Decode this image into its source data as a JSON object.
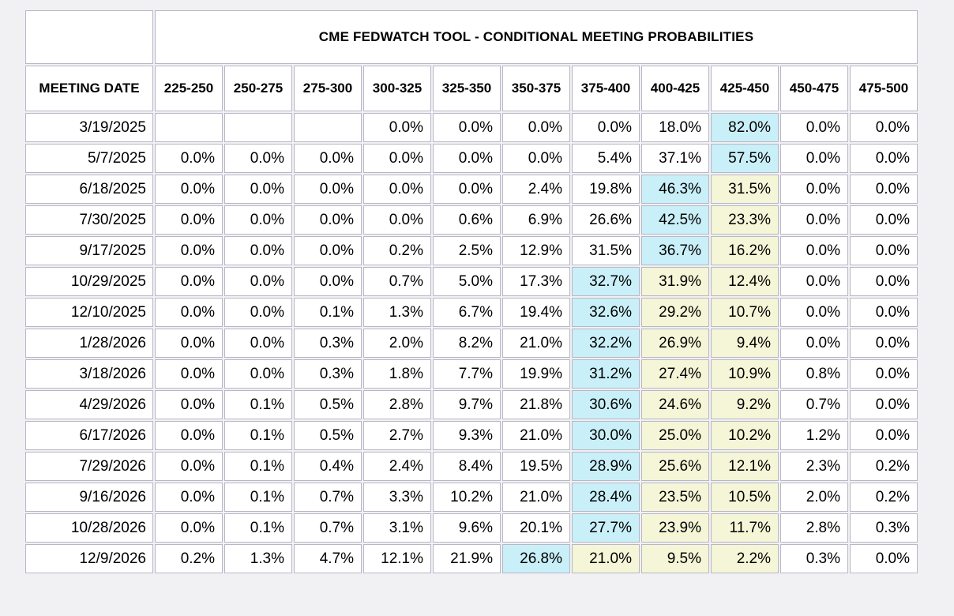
{
  "table": {
    "title": "CME FEDWATCH TOOL - CONDITIONAL MEETING PROBABILITIES",
    "meeting_date_header": "MEETING DATE",
    "rate_bins": [
      "225-250",
      "250-275",
      "275-300",
      "300-325",
      "325-350",
      "350-375",
      "375-400",
      "400-425",
      "425-450",
      "450-475",
      "475-500"
    ],
    "highlight_colors": {
      "blue": "#c9eff8",
      "yellow": "#f5f5d7"
    },
    "rows": [
      {
        "date": "3/19/2025",
        "values": [
          "",
          "",
          "",
          "0.0%",
          "0.0%",
          "0.0%",
          "0.0%",
          "18.0%",
          "82.0%",
          "0.0%",
          "0.0%"
        ],
        "highlight": [
          null,
          null,
          null,
          null,
          null,
          null,
          null,
          null,
          "blue",
          null,
          null
        ]
      },
      {
        "date": "5/7/2025",
        "values": [
          "0.0%",
          "0.0%",
          "0.0%",
          "0.0%",
          "0.0%",
          "0.0%",
          "5.4%",
          "37.1%",
          "57.5%",
          "0.0%",
          "0.0%"
        ],
        "highlight": [
          null,
          null,
          null,
          null,
          null,
          null,
          null,
          null,
          "blue",
          null,
          null
        ]
      },
      {
        "date": "6/18/2025",
        "values": [
          "0.0%",
          "0.0%",
          "0.0%",
          "0.0%",
          "0.0%",
          "2.4%",
          "19.8%",
          "46.3%",
          "31.5%",
          "0.0%",
          "0.0%"
        ],
        "highlight": [
          null,
          null,
          null,
          null,
          null,
          null,
          null,
          "blue",
          "yellow",
          null,
          null
        ]
      },
      {
        "date": "7/30/2025",
        "values": [
          "0.0%",
          "0.0%",
          "0.0%",
          "0.0%",
          "0.6%",
          "6.9%",
          "26.6%",
          "42.5%",
          "23.3%",
          "0.0%",
          "0.0%"
        ],
        "highlight": [
          null,
          null,
          null,
          null,
          null,
          null,
          null,
          "blue",
          "yellow",
          null,
          null
        ]
      },
      {
        "date": "9/17/2025",
        "values": [
          "0.0%",
          "0.0%",
          "0.0%",
          "0.2%",
          "2.5%",
          "12.9%",
          "31.5%",
          "36.7%",
          "16.2%",
          "0.0%",
          "0.0%"
        ],
        "highlight": [
          null,
          null,
          null,
          null,
          null,
          null,
          null,
          "blue",
          "yellow",
          null,
          null
        ]
      },
      {
        "date": "10/29/2025",
        "values": [
          "0.0%",
          "0.0%",
          "0.0%",
          "0.7%",
          "5.0%",
          "17.3%",
          "32.7%",
          "31.9%",
          "12.4%",
          "0.0%",
          "0.0%"
        ],
        "highlight": [
          null,
          null,
          null,
          null,
          null,
          null,
          "blue",
          "yellow",
          "yellow",
          null,
          null
        ]
      },
      {
        "date": "12/10/2025",
        "values": [
          "0.0%",
          "0.0%",
          "0.1%",
          "1.3%",
          "6.7%",
          "19.4%",
          "32.6%",
          "29.2%",
          "10.7%",
          "0.0%",
          "0.0%"
        ],
        "highlight": [
          null,
          null,
          null,
          null,
          null,
          null,
          "blue",
          "yellow",
          "yellow",
          null,
          null
        ]
      },
      {
        "date": "1/28/2026",
        "values": [
          "0.0%",
          "0.0%",
          "0.3%",
          "2.0%",
          "8.2%",
          "21.0%",
          "32.2%",
          "26.9%",
          "9.4%",
          "0.0%",
          "0.0%"
        ],
        "highlight": [
          null,
          null,
          null,
          null,
          null,
          null,
          "blue",
          "yellow",
          "yellow",
          null,
          null
        ]
      },
      {
        "date": "3/18/2026",
        "values": [
          "0.0%",
          "0.0%",
          "0.3%",
          "1.8%",
          "7.7%",
          "19.9%",
          "31.2%",
          "27.4%",
          "10.9%",
          "0.8%",
          "0.0%"
        ],
        "highlight": [
          null,
          null,
          null,
          null,
          null,
          null,
          "blue",
          "yellow",
          "yellow",
          null,
          null
        ]
      },
      {
        "date": "4/29/2026",
        "values": [
          "0.0%",
          "0.1%",
          "0.5%",
          "2.8%",
          "9.7%",
          "21.8%",
          "30.6%",
          "24.6%",
          "9.2%",
          "0.7%",
          "0.0%"
        ],
        "highlight": [
          null,
          null,
          null,
          null,
          null,
          null,
          "blue",
          "yellow",
          "yellow",
          null,
          null
        ]
      },
      {
        "date": "6/17/2026",
        "values": [
          "0.0%",
          "0.1%",
          "0.5%",
          "2.7%",
          "9.3%",
          "21.0%",
          "30.0%",
          "25.0%",
          "10.2%",
          "1.2%",
          "0.0%"
        ],
        "highlight": [
          null,
          null,
          null,
          null,
          null,
          null,
          "blue",
          "yellow",
          "yellow",
          null,
          null
        ]
      },
      {
        "date": "7/29/2026",
        "values": [
          "0.0%",
          "0.1%",
          "0.4%",
          "2.4%",
          "8.4%",
          "19.5%",
          "28.9%",
          "25.6%",
          "12.1%",
          "2.3%",
          "0.2%"
        ],
        "highlight": [
          null,
          null,
          null,
          null,
          null,
          null,
          "blue",
          "yellow",
          "yellow",
          null,
          null
        ]
      },
      {
        "date": "9/16/2026",
        "values": [
          "0.0%",
          "0.1%",
          "0.7%",
          "3.3%",
          "10.2%",
          "21.0%",
          "28.4%",
          "23.5%",
          "10.5%",
          "2.0%",
          "0.2%"
        ],
        "highlight": [
          null,
          null,
          null,
          null,
          null,
          null,
          "blue",
          "yellow",
          "yellow",
          null,
          null
        ]
      },
      {
        "date": "10/28/2026",
        "values": [
          "0.0%",
          "0.1%",
          "0.7%",
          "3.1%",
          "9.6%",
          "20.1%",
          "27.7%",
          "23.9%",
          "11.7%",
          "2.8%",
          "0.3%"
        ],
        "highlight": [
          null,
          null,
          null,
          null,
          null,
          null,
          "blue",
          "yellow",
          "yellow",
          null,
          null
        ]
      },
      {
        "date": "12/9/2026",
        "values": [
          "0.2%",
          "1.3%",
          "4.7%",
          "12.1%",
          "21.9%",
          "26.8%",
          "21.0%",
          "9.5%",
          "2.2%",
          "0.3%",
          "0.0%"
        ],
        "highlight": [
          null,
          null,
          null,
          null,
          null,
          "blue",
          "yellow",
          "yellow",
          "yellow",
          null,
          null
        ]
      }
    ]
  }
}
